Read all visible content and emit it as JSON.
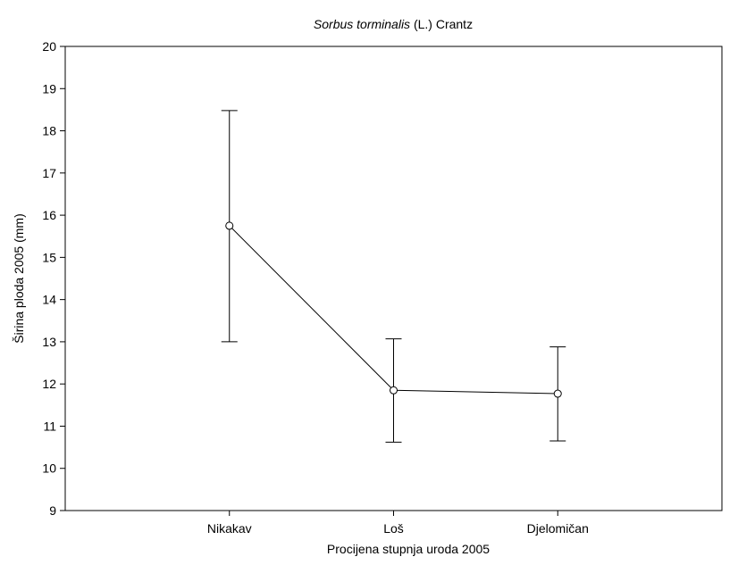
{
  "chart_data": {
    "type": "line",
    "title_italic": "Sorbus torminalis",
    "title_rest": " (L.) Crantz",
    "xlabel": "Procijena stupnja uroda 2005",
    "ylabel": "Širina ploda 2005 (mm)",
    "categories": [
      "Nikakav",
      "Loš",
      "Djelomičan"
    ],
    "series": [
      {
        "values": [
          15.75,
          11.85,
          11.77
        ],
        "error_lower": [
          13.0,
          10.62,
          10.65
        ],
        "error_upper": [
          18.48,
          13.07,
          12.88
        ]
      }
    ],
    "ylim": [
      9,
      20
    ],
    "yticks": [
      "9",
      "10",
      "11",
      "12",
      "13",
      "14",
      "15",
      "16",
      "17",
      "18",
      "19",
      "20"
    ],
    "grid": false,
    "legend": "none",
    "colors": {
      "line": "#000000",
      "marker_fill": "#ffffff",
      "axis": "#000000"
    }
  }
}
